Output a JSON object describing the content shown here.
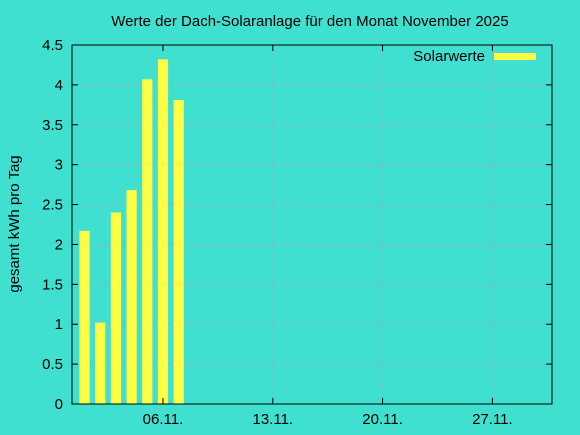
{
  "chart_data": {
    "type": "bar",
    "title": "Werte der Dach-Solaranlage für den Monat November 2025",
    "xlabel": "",
    "ylabel": "gesamt kWh pro Tag",
    "x": [
      1,
      2,
      3,
      4,
      5,
      6,
      7
    ],
    "x_tick_labels": [
      {
        "x": 6,
        "label": "06.11."
      },
      {
        "x": 13,
        "label": "13.11."
      },
      {
        "x": 20,
        "label": "20.11."
      },
      {
        "x": 27,
        "label": "27.11."
      }
    ],
    "y_tick_labels": [
      "0",
      "0.5",
      "1",
      "1.5",
      "2",
      "2.5",
      "3",
      "3.5",
      "4",
      "4.5"
    ],
    "y_ticks": [
      0,
      0.5,
      1,
      1.5,
      2,
      2.5,
      3,
      3.5,
      4,
      4.5
    ],
    "xlim": [
      0.2,
      30.8
    ],
    "ylim": [
      0,
      4.5
    ],
    "series": [
      {
        "name": "Solarwerte",
        "values": [
          2.17,
          1.02,
          2.4,
          2.68,
          4.07,
          4.32,
          3.81
        ],
        "color": "#ffff44"
      }
    ],
    "grid": true,
    "legend": "top-right",
    "colors": {
      "background": "#40e0d0",
      "bar": "#ffff44",
      "grid": "#a0a0a0",
      "axis": "#000000"
    }
  }
}
